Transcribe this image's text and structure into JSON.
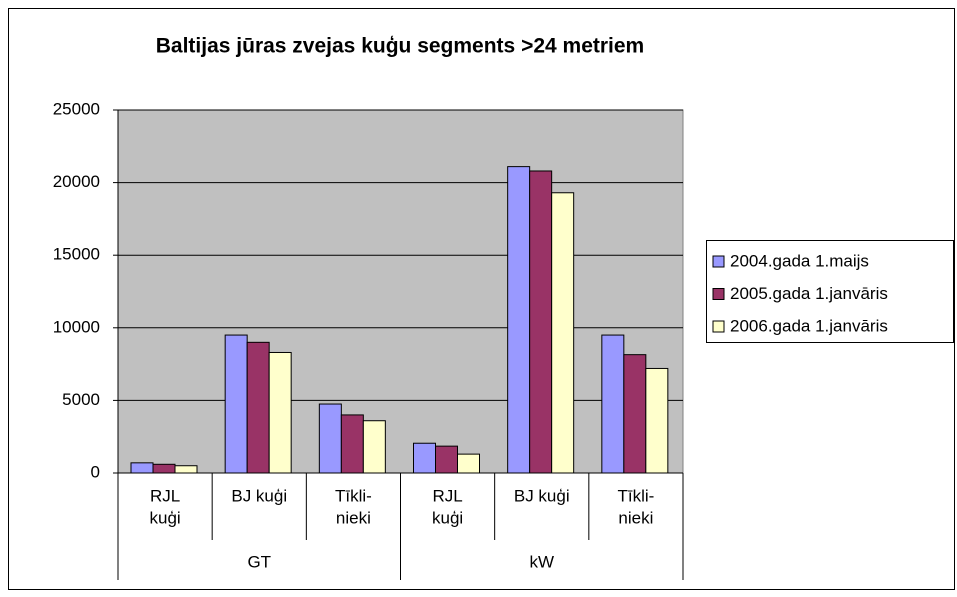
{
  "chart_data": {
    "type": "bar",
    "title": "Baltijas jūras zvejas kuģu segments >24 metriem",
    "categories": [
      [
        "RJL",
        "kuģi"
      ],
      [
        "BJ kuģi"
      ],
      [
        "Tīkli-",
        "nieki"
      ],
      [
        "RJL",
        "kuģi"
      ],
      [
        "BJ kuģi"
      ],
      [
        "Tīkli-",
        "nieki"
      ]
    ],
    "groups": [
      "GT",
      "kW"
    ],
    "series": [
      {
        "name": "2004.gada 1.maijs",
        "color": "#9999ff",
        "values": [
          700,
          9500,
          4750,
          2050,
          21100,
          9500
        ]
      },
      {
        "name": "2005.gada 1.janvāris",
        "color": "#993366",
        "values": [
          600,
          9000,
          4000,
          1850,
          20800,
          8150
        ]
      },
      {
        "name": "2006.gada 1.janvāris",
        "color": "#ffffcc",
        "values": [
          500,
          8300,
          3600,
          1300,
          19300,
          7200
        ]
      }
    ],
    "ylim": [
      0,
      25000
    ],
    "yticks": [
      0,
      5000,
      10000,
      15000,
      20000,
      25000
    ],
    "grid": true,
    "legend": "right"
  }
}
